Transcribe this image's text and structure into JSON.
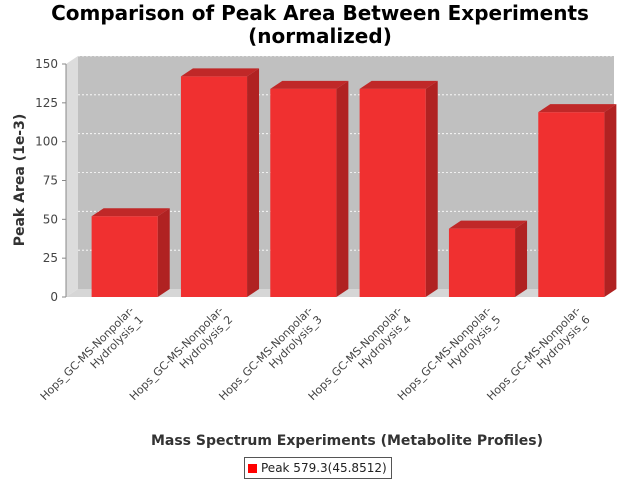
{
  "chart_data": {
    "type": "bar",
    "title_line1": "Comparison of Peak Area Between Experiments",
    "title_line2": "(normalized)",
    "xlabel": "Mass Spectrum Experiments (Metabolite Profiles)",
    "ylabel": "Peak Area (1e-3)",
    "ylim": [
      0,
      150
    ],
    "yticks": [
      "0",
      "25",
      "50",
      "75",
      "100",
      "125",
      "150"
    ],
    "grid": true,
    "legend_placement": "bottom",
    "categories": [
      [
        "Hops_GC-MS-Nonpolar-",
        "Hydrolysis_1"
      ],
      [
        "Hops_GC-MS-Nonpolar-",
        "Hydrolysis_2"
      ],
      [
        "Hops_GC-MS-Nonpolar-",
        "Hydrolysis_3"
      ],
      [
        "Hops_GC-MS-Nonpolar-",
        "Hydrolysis_4"
      ],
      [
        "Hops_GC-MS-Nonpolar-",
        "Hydrolysis_5"
      ],
      [
        "Hops_GC-MS-Nonpolar-",
        "Hydrolysis_6"
      ]
    ],
    "series": [
      {
        "name": "Peak 579.3(45.8512)",
        "values": [
          52,
          142,
          134,
          134,
          44,
          119
        ],
        "color": "#ff0000"
      }
    ]
  }
}
